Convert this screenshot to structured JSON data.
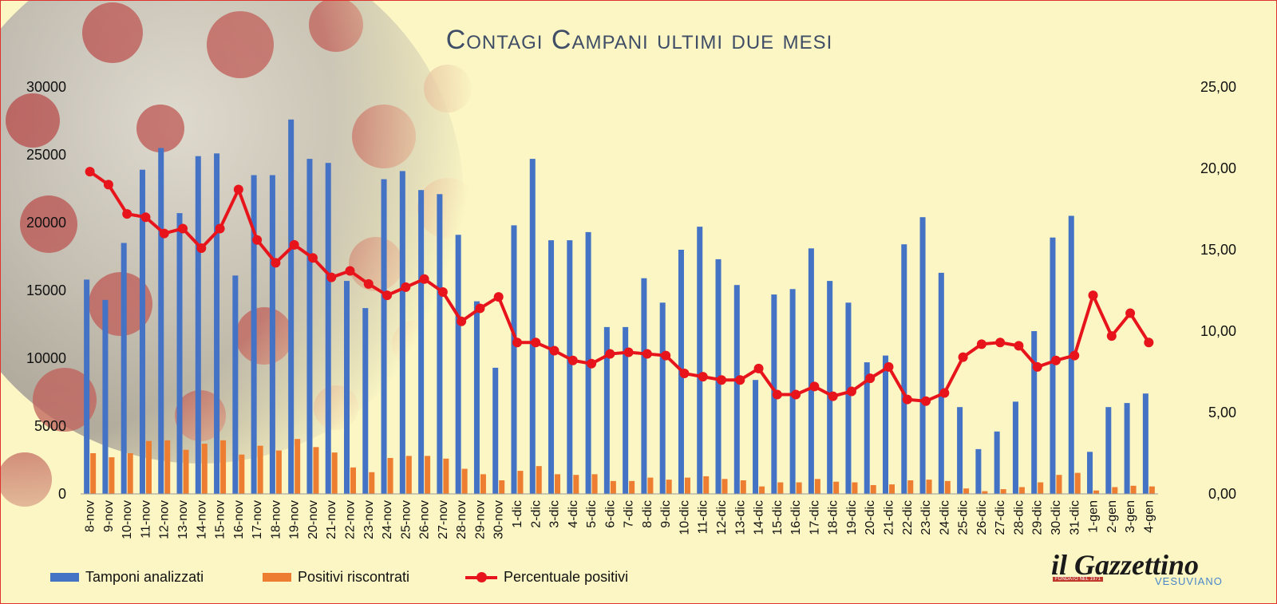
{
  "title": "Contagi Campani ultimi due mesi",
  "legend": {
    "tamponi": "Tamponi analizzati",
    "positivi": "Positivi riscontrati",
    "percentuale": "Percentuale positivi"
  },
  "logo": {
    "main": "il Gazzettino",
    "sub": "VESUVIANO",
    "small": "FONDATO NEL 1971"
  },
  "colors": {
    "background": "#fbf6c4",
    "border": "#e0322c",
    "tamponi": "#4472c4",
    "positivi": "#ed7d31",
    "percentuale": "#e8141b",
    "title": "#3f4d66"
  },
  "chart_data": {
    "type": "bar",
    "categories": [
      "8-nov",
      "9-nov",
      "10-nov",
      "11-nov",
      "12-nov",
      "13-nov",
      "14-nov",
      "15-nov",
      "16-nov",
      "17-nov",
      "18-nov",
      "19-nov",
      "20-nov",
      "21-nov",
      "22-nov",
      "23-nov",
      "24-nov",
      "25-nov",
      "26-nov",
      "27-nov",
      "28-nov",
      "29-nov",
      "30-nov",
      "1-dic",
      "2-dic",
      "3-dic",
      "4-dic",
      "5-dic",
      "6-dic",
      "7-dic",
      "8-dic",
      "9-dic",
      "10-dic",
      "11-dic",
      "12-dic",
      "13-dic",
      "14-dic",
      "15-dic",
      "16-dic",
      "17-dic",
      "18-dic",
      "19-dic",
      "20-dic",
      "21-dic",
      "22-dic",
      "23-dic",
      "24-dic",
      "25-dic",
      "26-dic",
      "27-dic",
      "28-dic",
      "29-dic",
      "30-dic",
      "31-dic",
      "1-gen",
      "2-gen",
      "3-gen",
      "4-gen"
    ],
    "series": [
      {
        "name": "Tamponi analizzati",
        "type": "bar",
        "axis": "left",
        "values": [
          15800,
          14300,
          18500,
          23900,
          25500,
          20700,
          24900,
          25100,
          16100,
          23500,
          23500,
          27600,
          24700,
          24400,
          15700,
          13700,
          23200,
          23800,
          22400,
          22100,
          19100,
          14200,
          9300,
          19800,
          24700,
          18700,
          18700,
          19300,
          12300,
          12300,
          15900,
          14100,
          18000,
          19700,
          17300,
          15400,
          8400,
          14700,
          15100,
          18100,
          15700,
          14100,
          9700,
          10200,
          18400,
          20400,
          16300,
          6400,
          3300,
          4600,
          6800,
          12000,
          18900,
          20500,
          3100,
          6400,
          6700,
          7400
        ]
      },
      {
        "name": "Positivi riscontrati",
        "type": "bar",
        "axis": "left",
        "values": [
          3000,
          2700,
          3000,
          3900,
          3950,
          3250,
          3700,
          3950,
          2900,
          3550,
          3200,
          4050,
          3450,
          3050,
          1950,
          1600,
          2650,
          2800,
          2800,
          2600,
          1850,
          1450,
          1000,
          1700,
          2050,
          1450,
          1400,
          1450,
          950,
          950,
          1200,
          1050,
          1200,
          1300,
          1100,
          1000,
          550,
          850,
          850,
          1100,
          900,
          850,
          650,
          700,
          1000,
          1050,
          950,
          400,
          200,
          350,
          500,
          850,
          1400,
          1550,
          250,
          500,
          600,
          550
        ]
      },
      {
        "name": "Percentuale positivi",
        "type": "line",
        "axis": "right",
        "values": [
          19.8,
          19.0,
          17.2,
          17.0,
          16.0,
          16.3,
          15.1,
          16.3,
          18.7,
          15.6,
          14.2,
          15.3,
          14.5,
          13.3,
          13.7,
          12.9,
          12.2,
          12.7,
          13.2,
          12.4,
          10.6,
          11.4,
          12.1,
          9.3,
          9.3,
          8.8,
          8.2,
          8.0,
          8.6,
          8.7,
          8.6,
          8.5,
          7.4,
          7.2,
          7.0,
          7.0,
          7.7,
          6.1,
          6.1,
          6.6,
          6.0,
          6.3,
          7.1,
          7.8,
          5.8,
          5.7,
          6.2,
          8.4,
          9.2,
          9.3,
          9.1,
          7.8,
          8.2,
          8.5,
          12.2,
          9.7,
          11.1,
          9.3
        ]
      }
    ],
    "ylim_left": [
      0,
      30000
    ],
    "yticks_left": [
      "0",
      "5000",
      "10000",
      "15000",
      "20000",
      "25000",
      "30000"
    ],
    "ylim_right": [
      0,
      25
    ],
    "yticks_right": [
      "0,00",
      "5,00",
      "10,00",
      "15,00",
      "20,00",
      "25,00"
    ],
    "grid": false,
    "legend_position": "bottom"
  }
}
